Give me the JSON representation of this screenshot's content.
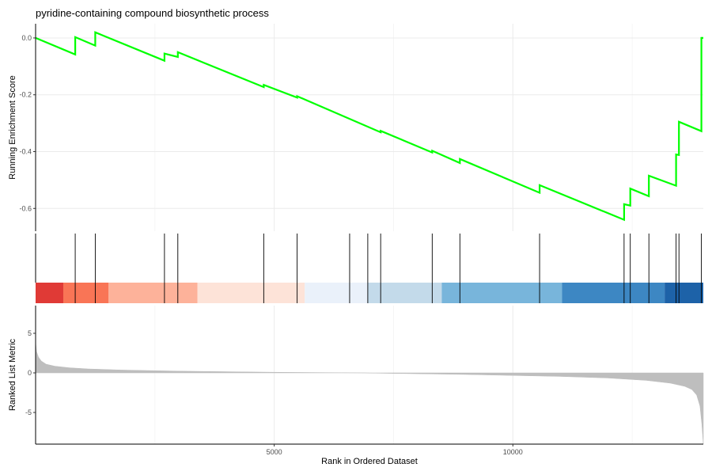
{
  "chart_data": {
    "type": "line",
    "title": "pyridine-containing compound biosynthetic process",
    "x_range": [
      0,
      13990
    ],
    "xlabel": "Rank in Ordered Dataset",
    "x_ticks": [
      5000,
      10000
    ],
    "x_tick_labels": [
      "5000",
      "10000"
    ],
    "running_score_panel": {
      "ylabel": "Running Enrichment Score",
      "ylim": [
        -0.68,
        0.05
      ],
      "y_ticks": [
        0.0,
        -0.2,
        -0.4,
        -0.6
      ],
      "y_tick_labels": [
        "0.0",
        "-0.2",
        "-0.4",
        "-0.6"
      ],
      "line_color": "#00ff00",
      "series": [
        {
          "x": [
            0,
            830,
            830,
            1250,
            1250,
            2700,
            2700,
            2980,
            2980,
            4780,
            4780,
            5480,
            5480,
            7230,
            7230,
            8310,
            8310,
            8890,
            8890,
            10560,
            10560,
            12330,
            12330,
            12460,
            12460,
            12850,
            12850,
            13420,
            13420,
            13480,
            13480,
            13950,
            13950,
            13990
          ],
          "y": [
            0.0,
            -0.058,
            0.003,
            -0.027,
            0.02,
            -0.08,
            -0.055,
            -0.067,
            -0.05,
            -0.173,
            -0.165,
            -0.21,
            -0.205,
            -0.332,
            -0.327,
            -0.403,
            -0.397,
            -0.44,
            -0.426,
            -0.545,
            -0.518,
            -0.64,
            -0.585,
            -0.59,
            -0.53,
            -0.557,
            -0.485,
            -0.52,
            -0.41,
            -0.412,
            -0.295,
            -0.328,
            0.0,
            0.0
          ]
        }
      ]
    },
    "gene_hits": [
      830,
      1250,
      2700,
      2980,
      4780,
      5480,
      6580,
      6960,
      7230,
      8310,
      8890,
      10560,
      12330,
      12460,
      12850,
      13420,
      13480,
      13950
    ],
    "color_bands": [
      {
        "start": 0,
        "end": 580,
        "color": "#e03a36"
      },
      {
        "start": 580,
        "end": 1530,
        "color": "#f97556"
      },
      {
        "start": 1530,
        "end": 3390,
        "color": "#fdb29a"
      },
      {
        "start": 3390,
        "end": 5640,
        "color": "#fde3d8"
      },
      {
        "start": 5640,
        "end": 6960,
        "color": "#eaf1fa"
      },
      {
        "start": 6960,
        "end": 8510,
        "color": "#c3daea"
      },
      {
        "start": 8510,
        "end": 11030,
        "color": "#78b5db"
      },
      {
        "start": 11030,
        "end": 13180,
        "color": "#3d87c3"
      },
      {
        "start": 13180,
        "end": 13990,
        "color": "#1d62a8"
      }
    ],
    "ranked_list_panel": {
      "ylabel": "Ranked List Metric",
      "ylim": [
        -9,
        8.5
      ],
      "y_ticks": [
        5,
        0,
        -5
      ],
      "y_tick_labels": [
        "5",
        "0",
        "-5"
      ],
      "fill_color": "#bebebe",
      "profile": {
        "x": [
          0,
          20,
          60,
          120,
          220,
          400,
          700,
          1100,
          1800,
          3000,
          5000,
          6900,
          7000,
          9000,
          11000,
          12000,
          12800,
          13300,
          13600,
          13750,
          13850,
          13920,
          13960,
          13990
        ],
        "y": [
          3.9,
          2.7,
          2.0,
          1.5,
          1.1,
          0.85,
          0.65,
          0.5,
          0.36,
          0.22,
          0.08,
          0.0,
          -0.02,
          -0.2,
          -0.45,
          -0.65,
          -0.95,
          -1.3,
          -1.7,
          -2.1,
          -2.8,
          -4.2,
          -6.5,
          -9.0
        ]
      }
    }
  }
}
